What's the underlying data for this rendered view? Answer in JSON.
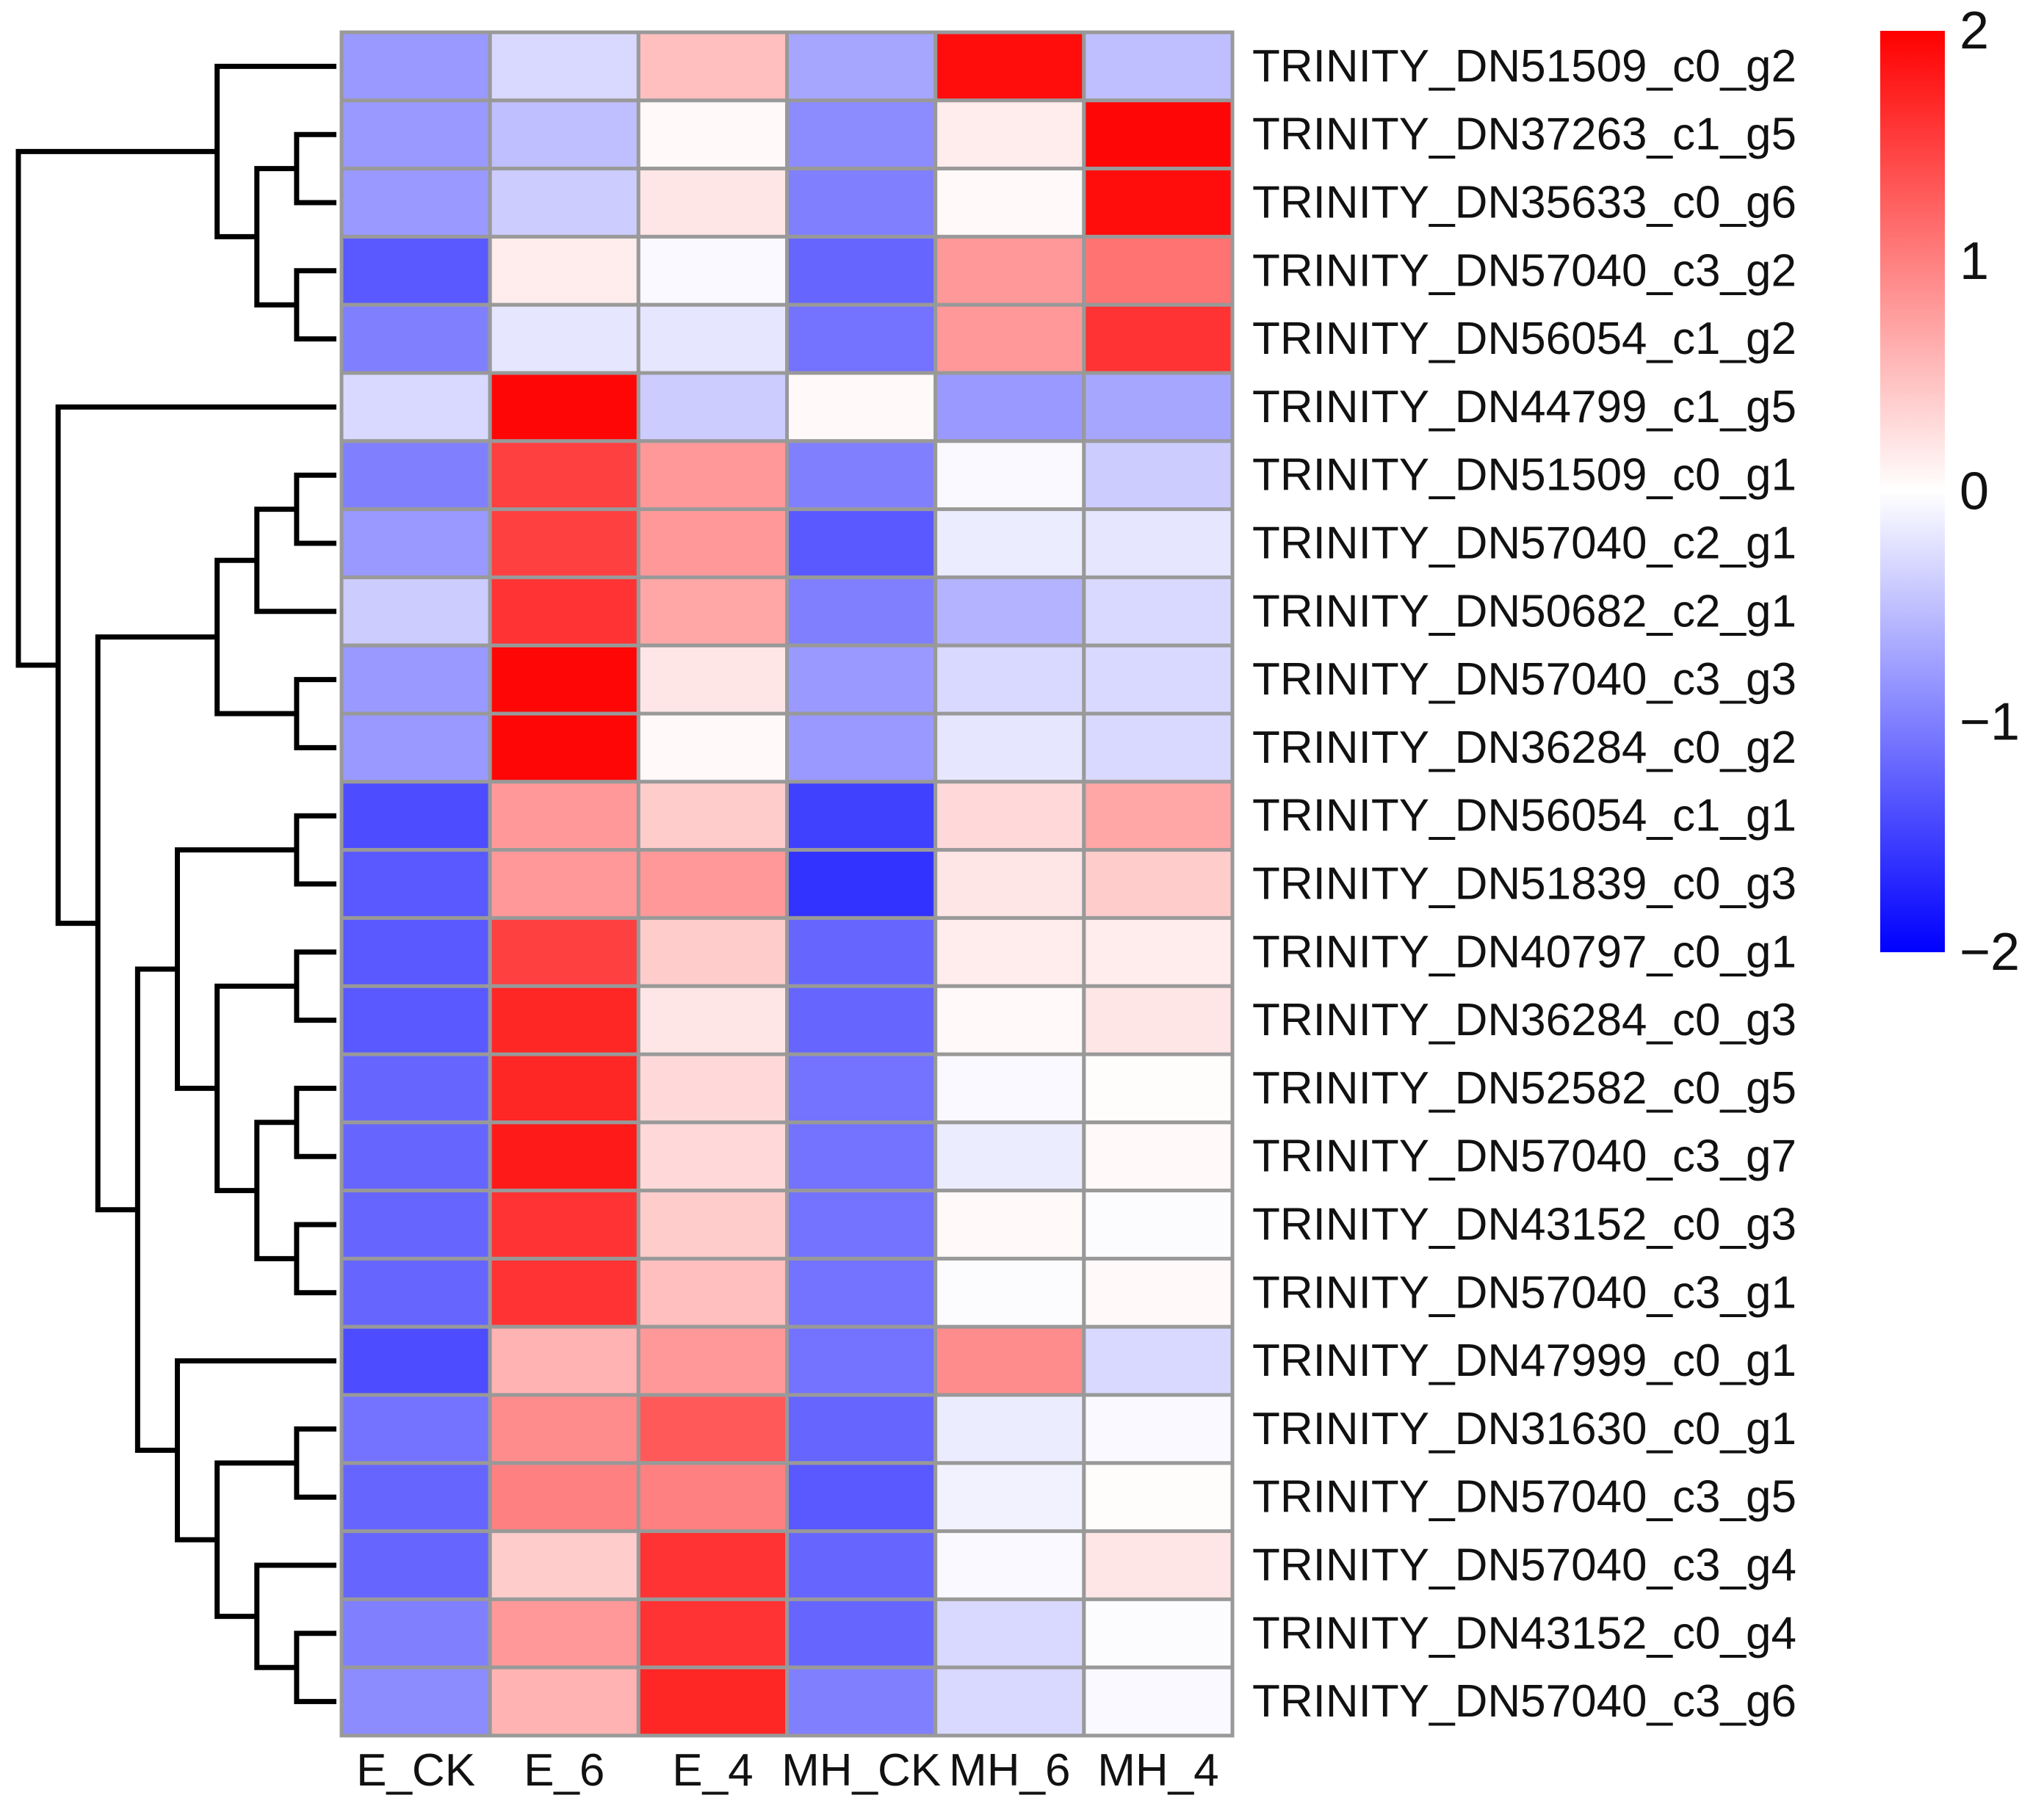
{
  "chart_data": {
    "type": "heatmap",
    "title": "",
    "columns": [
      "E_CK",
      "E_6",
      "E_4",
      "MH_CK",
      "MH_6",
      "MH_4"
    ],
    "rows": [
      "TRINITY_DN51509_c0_g2",
      "TRINITY_DN37263_c1_g5",
      "TRINITY_DN35633_c0_g6",
      "TRINITY_DN57040_c3_g2",
      "TRINITY_DN56054_c1_g2",
      "TRINITY_DN44799_c1_g5",
      "TRINITY_DN51509_c0_g1",
      "TRINITY_DN57040_c2_g1",
      "TRINITY_DN50682_c2_g1",
      "TRINITY_DN57040_c3_g3",
      "TRINITY_DN36284_c0_g2",
      "TRINITY_DN56054_c1_g1",
      "TRINITY_DN51839_c0_g3",
      "TRINITY_DN40797_c0_g1",
      "TRINITY_DN36284_c0_g3",
      "TRINITY_DN52582_c0_g5",
      "TRINITY_DN57040_c3_g7",
      "TRINITY_DN43152_c0_g3",
      "TRINITY_DN57040_c3_g1",
      "TRINITY_DN47999_c0_g1",
      "TRINITY_DN31630_c0_g1",
      "TRINITY_DN57040_c3_g5",
      "TRINITY_DN57040_c3_g4",
      "TRINITY_DN43152_c0_g4",
      "TRINITY_DN57040_c3_g6"
    ],
    "values": [
      [
        -0.8,
        -0.3,
        0.5,
        -0.7,
        1.9,
        -0.5
      ],
      [
        -0.8,
        -0.5,
        0.05,
        -0.9,
        0.15,
        1.95
      ],
      [
        -0.8,
        -0.4,
        0.2,
        -1.0,
        0.05,
        1.9
      ],
      [
        -1.3,
        0.15,
        -0.05,
        -1.2,
        0.8,
        1.1
      ],
      [
        -1.0,
        -0.2,
        -0.2,
        -1.1,
        0.8,
        1.6
      ],
      [
        -0.3,
        1.95,
        -0.4,
        0.05,
        -0.8,
        -0.7
      ],
      [
        -1.0,
        1.5,
        0.8,
        -1.0,
        -0.05,
        -0.4
      ],
      [
        -0.8,
        1.5,
        0.8,
        -1.3,
        -0.15,
        -0.2
      ],
      [
        -0.4,
        1.6,
        0.7,
        -1.0,
        -0.6,
        -0.3
      ],
      [
        -0.8,
        1.95,
        0.2,
        -0.8,
        -0.3,
        -0.3
      ],
      [
        -0.8,
        1.95,
        0.05,
        -0.8,
        -0.2,
        -0.3
      ],
      [
        -1.4,
        0.8,
        0.4,
        -1.5,
        0.3,
        0.7
      ],
      [
        -1.3,
        0.8,
        0.8,
        -1.6,
        0.2,
        0.4
      ],
      [
        -1.3,
        1.5,
        0.4,
        -1.2,
        0.15,
        0.15
      ],
      [
        -1.3,
        1.7,
        0.2,
        -1.2,
        0.05,
        0.2
      ],
      [
        -1.2,
        1.7,
        0.3,
        -1.1,
        -0.05,
        0.02
      ],
      [
        -1.2,
        1.8,
        0.3,
        -1.1,
        -0.15,
        0.05
      ],
      [
        -1.2,
        1.6,
        0.4,
        -1.1,
        0.05,
        -0.02
      ],
      [
        -1.2,
        1.6,
        0.5,
        -1.1,
        -0.02,
        0.05
      ],
      [
        -1.4,
        0.6,
        0.8,
        -1.1,
        0.9,
        -0.3
      ],
      [
        -1.1,
        0.9,
        1.3,
        -1.2,
        -0.15,
        -0.05
      ],
      [
        -1.2,
        1.0,
        1.0,
        -1.3,
        -0.1,
        0.02
      ],
      [
        -1.2,
        0.4,
        1.6,
        -1.2,
        -0.05,
        0.2
      ],
      [
        -1.0,
        0.8,
        1.6,
        -1.2,
        -0.3,
        -0.02
      ],
      [
        -0.9,
        0.6,
        1.7,
        -1.0,
        -0.3,
        -0.05
      ]
    ],
    "color_scale": {
      "min": -2,
      "max": 2,
      "low_color": "#0000ff",
      "mid_color": "#ffffff",
      "high_color": "#ff0000",
      "ticks": [
        2,
        1,
        0,
        -1,
        -2
      ],
      "tick_labels": [
        "2",
        "1",
        "0",
        "−1",
        "−2"
      ]
    },
    "dendrogram": {
      "side": "left",
      "tree": [
        [
          [
            0,
            [
              [
                1,
                2
              ],
              [
                3,
                4
              ]
            ]
          ]
        ],
        [
          5,
          [
            [
              [
                [
                  6,
                  7
                ],
                8
              ],
              [
                9,
                10
              ]
            ],
            [
              [
                [
                  11,
                  12
                ],
                [
                  [
                    13,
                    14
                  ],
                  [
                    [
                      15,
                      16
                    ],
                    [
                      17,
                      18
                    ]
                  ]
                ]
              ],
              [
                19,
                [
                  [
                    20,
                    21
                  ],
                  [
                    22,
                    [
                      23,
                      24
                    ]
                  ]
                ]
              ]
            ]
          ]
        ]
      ]
    },
    "grid_color": "#999999",
    "legend_position": "right"
  }
}
